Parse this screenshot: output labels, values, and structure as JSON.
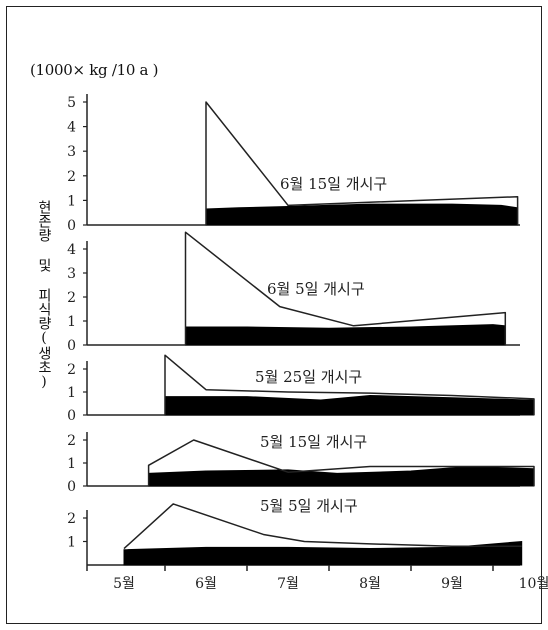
{
  "unit_label": "(1000× kg /10 a )",
  "y_axis_label": "현존량 및 피식량(생초)",
  "colors": {
    "line": "#222222",
    "fill": "#000000",
    "background": "#ffffff"
  },
  "chart_data": {
    "type": "line",
    "stacked_panels": true,
    "x_categories": [
      "5월",
      "6월",
      "7월",
      "8월",
      "9월",
      "10월"
    ],
    "panels": [
      {
        "label": "6월 15일 개시구",
        "ylim": [
          0,
          5
        ],
        "yticks": [
          "0",
          "1",
          "2",
          "3",
          "4",
          "5"
        ],
        "standing_crop": {
          "x": [
            6.0,
            6.0,
            7.0,
            9.8,
            9.8
          ],
          "y": [
            0,
            5.0,
            0.8,
            1.15,
            0
          ]
        },
        "consumed": {
          "x": [
            6.0,
            6.4,
            7.0,
            8.0,
            9.0,
            9.6,
            9.8
          ],
          "y": [
            0.65,
            0.7,
            0.75,
            0.85,
            0.85,
            0.8,
            0.7
          ]
        }
      },
      {
        "label": "6월 5일 개시구",
        "ylim": [
          0,
          4
        ],
        "yticks": [
          "0",
          "1",
          "2",
          "3",
          "4"
        ],
        "standing_crop": {
          "x": [
            5.75,
            5.75,
            6.9,
            7.8,
            9.65,
            9.65
          ],
          "y": [
            0,
            4.7,
            1.6,
            0.8,
            1.35,
            0
          ]
        },
        "consumed": {
          "x": [
            5.75,
            6.5,
            7.5,
            8.5,
            9.5,
            9.65
          ],
          "y": [
            0.75,
            0.75,
            0.7,
            0.75,
            0.85,
            0.8
          ]
        }
      },
      {
        "label": "5월 25일 개시구",
        "ylim": [
          0,
          2
        ],
        "yticks": [
          "0",
          "1",
          "2"
        ],
        "standing_crop": {
          "x": [
            5.5,
            5.5,
            6.0,
            7.0,
            8.0,
            9.0,
            10.0,
            10.0
          ],
          "y": [
            0,
            2.6,
            1.1,
            1.0,
            0.95,
            0.85,
            0.7,
            0
          ]
        },
        "consumed": {
          "x": [
            5.5,
            6.5,
            7.4,
            8.0,
            9.0,
            10.0
          ],
          "y": [
            0.8,
            0.8,
            0.65,
            0.85,
            0.75,
            0.65
          ]
        }
      },
      {
        "label": "5월 15일 개시구",
        "ylim": [
          0,
          2
        ],
        "yticks": [
          "0",
          "1",
          "2"
        ],
        "standing_crop": {
          "x": [
            5.3,
            5.3,
            5.85,
            7.0,
            8.0,
            9.0,
            10.0,
            10.0
          ],
          "y": [
            0,
            0.9,
            2.0,
            0.6,
            0.85,
            0.85,
            0.85,
            0
          ]
        },
        "consumed": {
          "x": [
            5.3,
            6.0,
            7.0,
            7.6,
            8.5,
            9.2,
            10.0
          ],
          "y": [
            0.55,
            0.65,
            0.7,
            0.55,
            0.65,
            0.85,
            0.75
          ]
        }
      },
      {
        "label": "5월 5일 개시구",
        "ylim": [
          0,
          2
        ],
        "yticks": [
          "1",
          "2"
        ],
        "standing_crop": {
          "x": [
            5.0,
            5.6,
            6.7,
            7.2,
            8.0,
            9.0,
            9.85
          ],
          "y": [
            0.7,
            2.6,
            1.3,
            1.0,
            0.9,
            0.8,
            0.8
          ]
        },
        "consumed": {
          "x": [
            5.0,
            6.0,
            7.0,
            8.0,
            9.0,
            9.85
          ],
          "y": [
            0.65,
            0.75,
            0.75,
            0.7,
            0.75,
            1.0
          ]
        }
      }
    ]
  }
}
